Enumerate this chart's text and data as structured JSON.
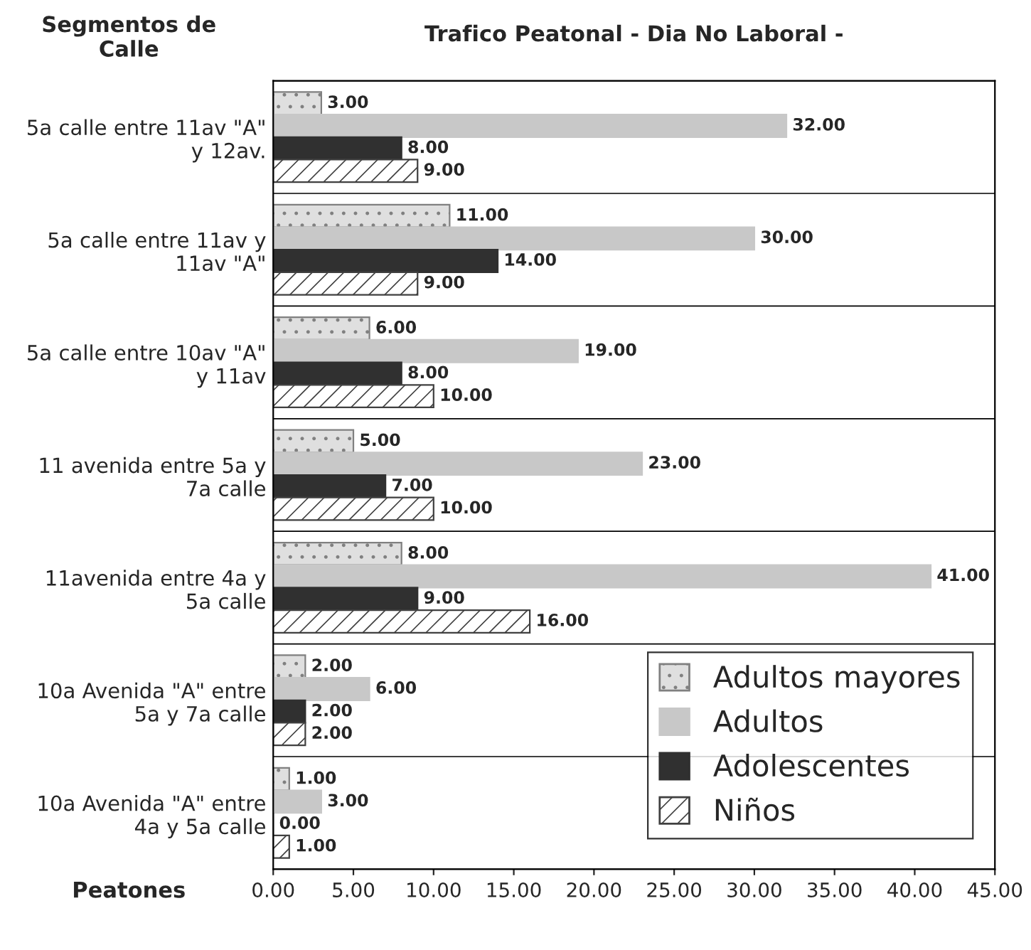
{
  "chart_data": {
    "type": "bar",
    "orientation": "horizontal",
    "title": "Trafico Peatonal - Dia No Laboral -",
    "ylabel": "Segmentos de\nCalle",
    "xlabel": "Peatones",
    "categories": [
      "5a calle entre 11av \"A\"\ny 12av.",
      "5a calle entre 11av y\n11av \"A\"",
      "5a calle entre 10av \"A\"\ny 11av",
      "11 avenida entre 5a y\n7a calle",
      "11avenida entre 4a y\n5a calle",
      "10a Avenida \"A\" entre\n5a y 7a calle",
      "10a Avenida \"A\" entre\n4a y 5a calle"
    ],
    "series": [
      {
        "name": "Adultos mayores",
        "color": "#808080",
        "values": [
          3,
          11,
          6,
          5,
          8,
          2,
          1
        ],
        "value_labels": [
          "3.00",
          "11.00",
          "6.00",
          "5.00",
          "8.00",
          "2.00",
          "1.00"
        ]
      },
      {
        "name": "Adultos",
        "color": "#c8c8c8",
        "values": [
          32,
          30,
          19,
          23,
          41,
          6,
          3
        ],
        "value_labels": [
          "32.00",
          "30.00",
          "19.00",
          "23.00",
          "41.00",
          "6.00",
          "3.00"
        ]
      },
      {
        "name": "Adolescentes",
        "color": "#303030",
        "values": [
          8,
          14,
          8,
          7,
          9,
          2,
          0
        ],
        "value_labels": [
          "8.00",
          "14.00",
          "8.00",
          "7.00",
          "9.00",
          "2.00",
          "0.00"
        ]
      },
      {
        "name": "Niños",
        "color": "#404040",
        "values": [
          9,
          9,
          10,
          10,
          16,
          2,
          1
        ],
        "value_labels": [
          "9.00",
          "9.00",
          "10.00",
          "10.00",
          "16.00",
          "2.00",
          "1.00"
        ]
      }
    ],
    "xlim": [
      0,
      45
    ],
    "xticks": [
      {
        "value": 0,
        "label": "0.00"
      },
      {
        "value": 5,
        "label": "5.00"
      },
      {
        "value": 10,
        "label": "10.00"
      },
      {
        "value": 15,
        "label": "15.00"
      },
      {
        "value": 20,
        "label": "20.00"
      },
      {
        "value": 25,
        "label": "25.00"
      },
      {
        "value": 30,
        "label": "30.00"
      },
      {
        "value": 35,
        "label": "35.00"
      },
      {
        "value": 40,
        "label": "40.00"
      },
      {
        "value": 45,
        "label": "45.00"
      }
    ],
    "grid": "y",
    "legend": "bottom right"
  }
}
